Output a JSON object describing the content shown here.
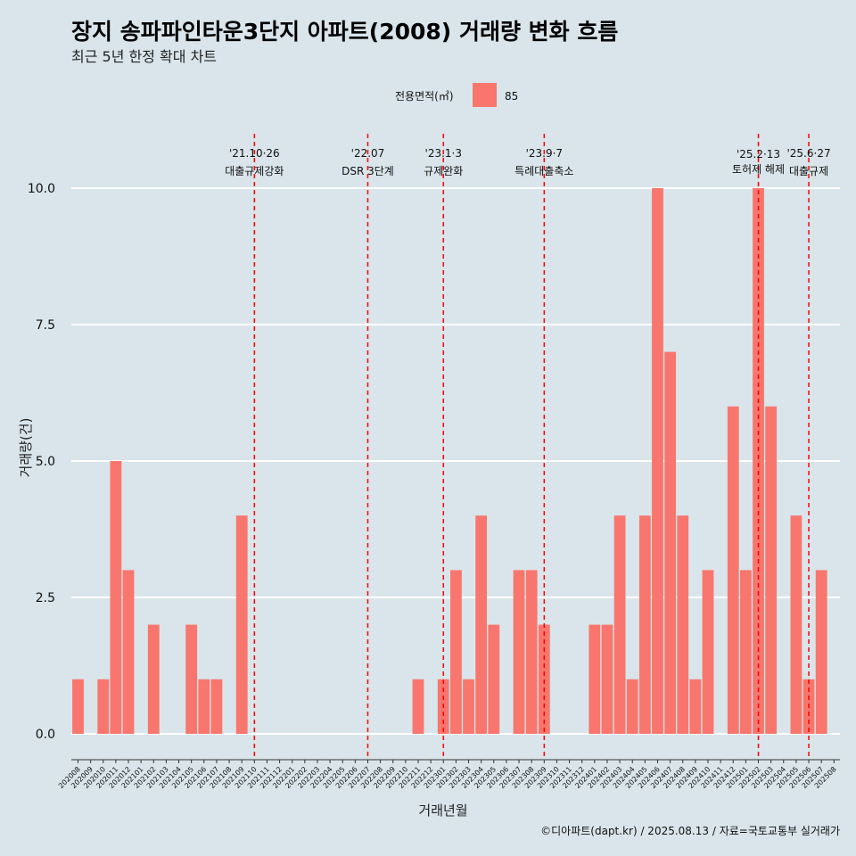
{
  "title": "장지 송파파인타운3단지 아파트(2008) 거래량 변화 흐름",
  "subtitle": "최근 5년 한정 확대 차트",
  "caption": "©디아파트(dapt.kr) / 2025.08.13 / 자료=국토교통부 실거래가",
  "legend": {
    "title": "전용면적(㎡)",
    "label": "85",
    "color": "#f8766d",
    "placement": "top"
  },
  "colors": {
    "background": "#d9e5ea",
    "bar": "#f8766d",
    "gridline": "#ffffff",
    "event_line": "#ff0000"
  },
  "chart_data": {
    "type": "bar",
    "xlabel": "거래년월",
    "ylabel": "거래량(건)",
    "ylim": [
      0,
      10
    ],
    "yticks": [
      "0.0",
      "2.5",
      "5.0",
      "7.5",
      "10.0"
    ],
    "ytick_values": [
      0,
      2.5,
      5,
      7.5,
      10
    ],
    "grid": "horizontal",
    "categories": [
      "202008",
      "202009",
      "202010",
      "202011",
      "202012",
      "202101",
      "202102",
      "202103",
      "202104",
      "202105",
      "202106",
      "202107",
      "202108",
      "202109",
      "202110",
      "202111",
      "202112",
      "202201",
      "202202",
      "202203",
      "202204",
      "202205",
      "202206",
      "202207",
      "202208",
      "202209",
      "202210",
      "202211",
      "202212",
      "202301",
      "202302",
      "202303",
      "202304",
      "202305",
      "202306",
      "202307",
      "202308",
      "202309",
      "202310",
      "202311",
      "202312",
      "202401",
      "202402",
      "202403",
      "202404",
      "202405",
      "202406",
      "202407",
      "202408",
      "202409",
      "202410",
      "202411",
      "202412",
      "202501",
      "202502",
      "202503",
      "202504",
      "202505",
      "202506",
      "202507",
      "202508"
    ],
    "series": [
      {
        "name": "85",
        "values": [
          1,
          0,
          1,
          5,
          3,
          0,
          2,
          0,
          0,
          2,
          1,
          1,
          0,
          4,
          0,
          0,
          0,
          0,
          0,
          0,
          0,
          0,
          0,
          0,
          0,
          0,
          0,
          1,
          0,
          1,
          3,
          1,
          4,
          2,
          0,
          3,
          3,
          2,
          0,
          0,
          0,
          2,
          2,
          4,
          1,
          4,
          10,
          7,
          4,
          1,
          3,
          0,
          6,
          3,
          10,
          6,
          0,
          4,
          1,
          3,
          0
        ]
      }
    ],
    "events": [
      {
        "month": "202110",
        "date_label": "'21.10·26",
        "label": "대출규제강화"
      },
      {
        "month": "202207",
        "date_label": "'22.07",
        "label": "DSR 3단계"
      },
      {
        "month": "202301",
        "date_label": "'23.1·3",
        "label": "규제완화"
      },
      {
        "month": "202309",
        "date_label": "'23.9·7",
        "label": "특례대출축소"
      },
      {
        "month": "202502",
        "date_label": "'25.2·13",
        "label": "토허제 해제"
      },
      {
        "month": "202506",
        "date_label": "'25.6·27",
        "label": "대출규제"
      }
    ]
  }
}
